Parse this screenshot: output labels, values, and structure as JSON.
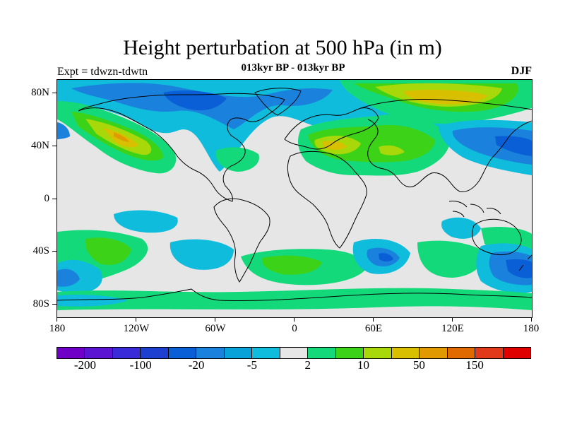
{
  "title": "Height perturbation at 500 hPa (in m)",
  "subtitle": "013kyr BP - 013kyr BP",
  "experiment": "Expt = tdwzn-tdwtn",
  "season": "DJF",
  "map": {
    "projection": "cylindrical-equidistant",
    "lon_range": [
      -180,
      180
    ],
    "lat_range": [
      -90,
      90
    ],
    "background_color": "#e6e6e6",
    "coastline_color": "#000000"
  },
  "axes": {
    "lat_labels": [
      "80N",
      "40N",
      "0",
      "40S",
      "80S"
    ],
    "lon_labels": [
      "180",
      "120W",
      "60W",
      "0",
      "60E",
      "120E",
      "180"
    ]
  },
  "colorbar": {
    "colors": [
      "#6f00c8",
      "#5b14d2",
      "#3a2bd8",
      "#1e40d0",
      "#0a5fd6",
      "#1a82dc",
      "#08a2d8",
      "#10bcdc",
      "#e6e6e6",
      "#14d97a",
      "#3cd218",
      "#a8d80a",
      "#d8c000",
      "#e09a00",
      "#e06a00",
      "#e03a1a",
      "#e00000"
    ],
    "labels": [
      "-200",
      "-100",
      "-20",
      "-5",
      "2",
      "10",
      "50",
      "150"
    ]
  }
}
